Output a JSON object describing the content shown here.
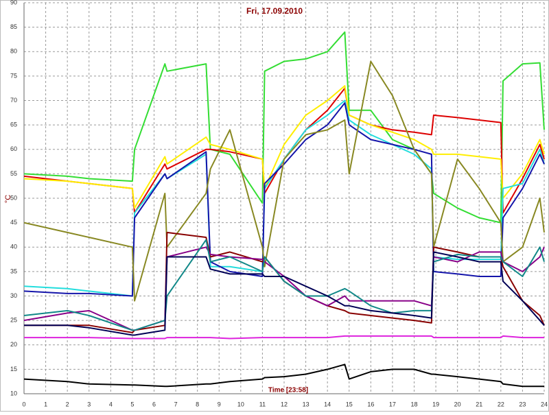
{
  "chart_data": {
    "type": "line",
    "title": "Fri, 17.09.2010",
    "y_label": "°C",
    "annotation": "Time [23:58]",
    "x": [
      0,
      2,
      3,
      5,
      5.1,
      6.5,
      6.6,
      8.4,
      8.6,
      9.5,
      11,
      11.1,
      12,
      13,
      14,
      14.8,
      15,
      16,
      17,
      18,
      18.8,
      18.9,
      20,
      21,
      22,
      22.1,
      23,
      23.8,
      24
    ],
    "xlim": [
      0,
      24
    ],
    "xticks": [
      0,
      1,
      2,
      3,
      4,
      5,
      6,
      7,
      8,
      9,
      10,
      11,
      12,
      13,
      14,
      15,
      16,
      17,
      18,
      19,
      20,
      21,
      22,
      23,
      24
    ],
    "ylim": [
      10,
      90
    ],
    "yticks": [
      10,
      15,
      20,
      25,
      30,
      35,
      40,
      45,
      50,
      55,
      60,
      65,
      70,
      75,
      80,
      85,
      90
    ],
    "grid": true,
    "series": [
      {
        "color": "#33dd33",
        "values": [
          55,
          54.5,
          54,
          53.5,
          60,
          77.5,
          76,
          77.5,
          60,
          59,
          49,
          76,
          78,
          78.5,
          80,
          84,
          68,
          68,
          62,
          60,
          55,
          51,
          48,
          46,
          45,
          74,
          77.5,
          77.7,
          64
        ]
      },
      {
        "color": "#dd0000",
        "values": [
          54.5,
          53.5,
          53,
          52,
          47,
          57,
          56,
          60,
          60,
          59.5,
          58,
          51,
          58,
          64,
          68,
          72.5,
          67,
          65,
          64,
          63.5,
          63,
          67,
          66.5,
          66,
          65.5,
          47,
          54,
          61,
          58
        ]
      },
      {
        "color": "#ffee00",
        "values": [
          54,
          53.5,
          53,
          52,
          48,
          58.5,
          57,
          62.5,
          61,
          60,
          58,
          52,
          61,
          67,
          70,
          73,
          67,
          65,
          63.5,
          62,
          60,
          59,
          59,
          58.5,
          58,
          50,
          55,
          62,
          59
        ]
      },
      {
        "color": "#22dddd",
        "values": [
          32,
          31.5,
          31,
          30,
          47,
          55,
          54,
          59,
          36,
          36,
          35,
          52,
          58,
          64,
          67,
          70,
          66,
          63,
          61,
          59,
          56,
          38,
          37.5,
          37.5,
          37.5,
          52,
          53,
          60,
          57
        ]
      },
      {
        "color": "#1515aa",
        "values": [
          31,
          30.5,
          30.5,
          30,
          46,
          55,
          54,
          59.5,
          37,
          35,
          34,
          53,
          57,
          62,
          65,
          69.5,
          65,
          62,
          61,
          60,
          59,
          35,
          34.5,
          34,
          34,
          46,
          52,
          59,
          57
        ]
      },
      {
        "color": "#888822",
        "values": [
          45,
          43,
          42,
          40,
          29,
          51,
          40,
          51,
          56,
          64,
          40,
          36,
          58,
          63,
          64,
          66,
          55,
          78,
          71,
          60,
          55,
          40,
          58,
          52,
          45,
          37,
          40,
          50,
          43
        ]
      },
      {
        "color": "#880000",
        "values": [
          24,
          24,
          24,
          22.5,
          23,
          24,
          43,
          42,
          38,
          39,
          37,
          38,
          33,
          30,
          28,
          27,
          26.5,
          26,
          25.5,
          25,
          24.5,
          40,
          39,
          38,
          38,
          36,
          29,
          26,
          24
        ]
      },
      {
        "color": "#880088",
        "values": [
          25,
          26.5,
          27,
          23,
          23,
          25,
          38,
          40,
          38.5,
          38,
          37.5,
          37,
          34,
          30,
          28,
          30,
          29,
          29,
          29,
          29,
          28,
          38,
          37,
          39,
          39,
          37,
          35,
          38,
          40
        ]
      },
      {
        "color": "#118888",
        "values": [
          26,
          27,
          26,
          23,
          23,
          25,
          30,
          41.5,
          37,
          38,
          35,
          38,
          33,
          30,
          30,
          31.5,
          31,
          28,
          26.5,
          27,
          27,
          37,
          38.5,
          38,
          38,
          37,
          34,
          40,
          37
        ]
      },
      {
        "color": "#000055",
        "values": [
          24,
          24,
          23.5,
          22,
          22,
          23,
          38,
          38,
          35.5,
          34.5,
          34.5,
          34,
          34,
          32,
          30,
          28,
          28,
          27,
          26.5,
          26,
          25.5,
          39,
          38,
          37,
          37,
          33,
          29,
          25,
          24
        ]
      },
      {
        "color": "#dd22dd",
        "values": [
          21.5,
          21.5,
          21.5,
          21.3,
          21.3,
          21.3,
          21.5,
          21.5,
          21.5,
          21.3,
          21.5,
          21.5,
          21.5,
          21.5,
          21.5,
          21.8,
          21.8,
          21.8,
          21.8,
          21.8,
          21.8,
          21.5,
          21.5,
          21.5,
          21.5,
          21.8,
          21.5,
          21.5,
          21.5
        ]
      },
      {
        "color": "#000000",
        "values": [
          13,
          12.5,
          12,
          11.8,
          11.8,
          11.5,
          11.5,
          12,
          12,
          12.5,
          13,
          13.3,
          13.5,
          14,
          15,
          16,
          13,
          14.5,
          15,
          15,
          14,
          14,
          13.5,
          13,
          12.5,
          12,
          11.5,
          11.5,
          11.5
        ]
      }
    ]
  }
}
